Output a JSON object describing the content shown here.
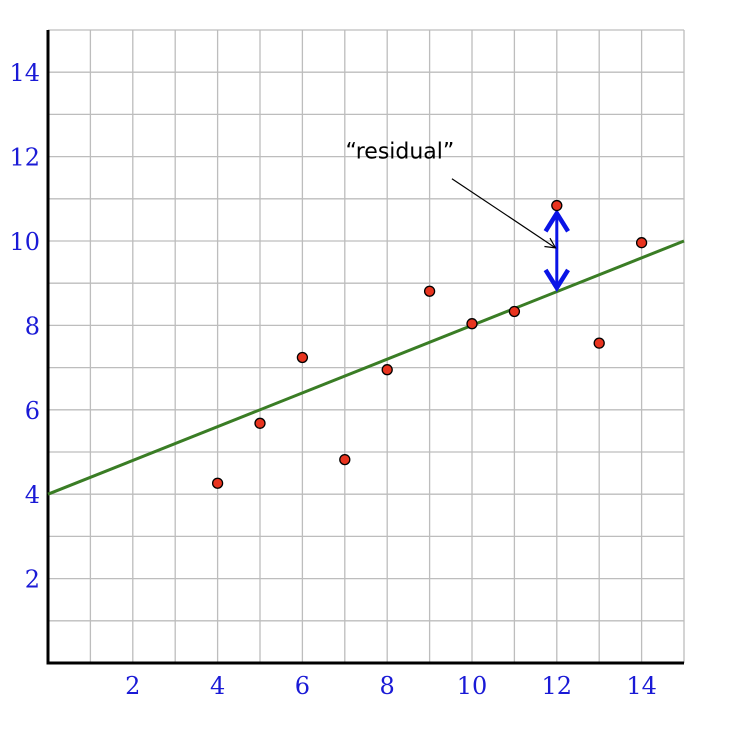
{
  "chart_data": {
    "type": "scatter",
    "title": "",
    "xlabel": "",
    "ylabel": "",
    "xlim": [
      0,
      15
    ],
    "ylim": [
      0,
      15
    ],
    "grid": true,
    "grid_step": 1,
    "x_ticks": [
      2,
      4,
      6,
      8,
      10,
      12,
      14
    ],
    "y_ticks": [
      2,
      4,
      6,
      8,
      10,
      12,
      14
    ],
    "x": [
      4,
      5,
      6,
      7,
      8,
      9,
      10,
      11,
      12,
      13,
      14
    ],
    "y": [
      4.26,
      5.68,
      7.24,
      4.82,
      6.95,
      8.81,
      8.04,
      8.33,
      10.84,
      7.58,
      9.96
    ],
    "fit_line": {
      "intercept": 4.0,
      "slope": 0.4
    },
    "residual": {
      "x": 12,
      "from_y": 8.8,
      "to_y": 10.84
    },
    "annotation": {
      "text": "“residual”",
      "x": 8.3,
      "y": 11.95,
      "arrow_to": [
        11.95,
        9.85
      ]
    },
    "colors": {
      "points": "#e8341f",
      "point_stroke": "#000000",
      "fit_line": "#3a7d25",
      "residual_arrow": "#0a14e6",
      "tick_labels": "#1a1ad6",
      "grid": "#bdbdbd"
    }
  }
}
